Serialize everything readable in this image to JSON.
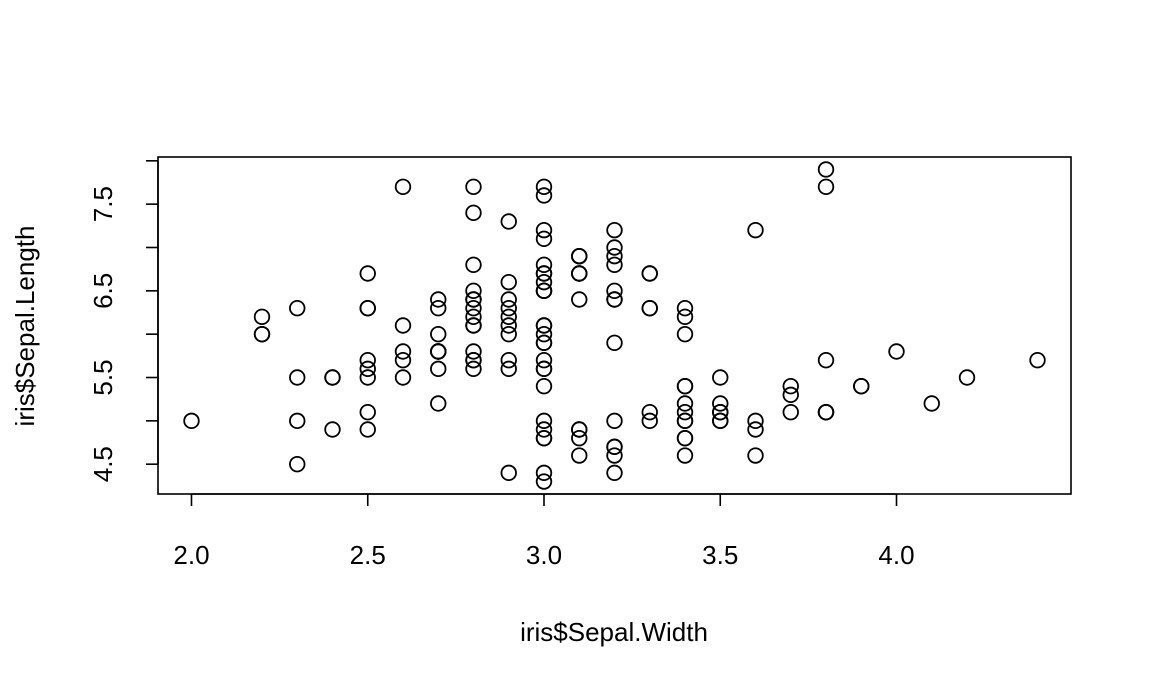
{
  "chart_data": {
    "type": "scatter",
    "xlabel": "iris$Sepal.Width",
    "ylabel": "iris$Sepal.Length",
    "xlim": [
      1.905,
      4.495
    ],
    "ylim": [
      4.156,
      8.044
    ],
    "x_ticks": [
      "2.0",
      "2.5",
      "3.0",
      "3.5",
      "4.0"
    ],
    "y_ticks": [
      "4.5",
      "5.5",
      "6.5",
      "7.5"
    ],
    "x_tick_values": [
      2.0,
      2.5,
      3.0,
      3.5,
      4.0
    ],
    "y_tick_values": [
      4.5,
      5.0,
      5.5,
      6.0,
      6.5,
      7.0,
      7.5,
      8.0
    ],
    "y_labeled_values": [
      4.5,
      5.5,
      6.5,
      7.5
    ],
    "grid": false,
    "marker": "open-circle",
    "points": [
      [
        3.5,
        5.1
      ],
      [
        3.0,
        4.9
      ],
      [
        3.2,
        4.7
      ],
      [
        3.1,
        4.6
      ],
      [
        3.6,
        5.0
      ],
      [
        3.9,
        5.4
      ],
      [
        3.4,
        4.6
      ],
      [
        3.4,
        5.0
      ],
      [
        2.9,
        4.4
      ],
      [
        3.1,
        4.9
      ],
      [
        3.7,
        5.4
      ],
      [
        3.4,
        4.8
      ],
      [
        3.0,
        4.8
      ],
      [
        3.0,
        4.3
      ],
      [
        4.0,
        5.8
      ],
      [
        4.4,
        5.7
      ],
      [
        3.9,
        5.4
      ],
      [
        3.5,
        5.1
      ],
      [
        3.8,
        5.7
      ],
      [
        3.8,
        5.1
      ],
      [
        3.4,
        5.4
      ],
      [
        3.7,
        5.1
      ],
      [
        3.6,
        4.6
      ],
      [
        3.3,
        5.1
      ],
      [
        3.4,
        4.8
      ],
      [
        3.0,
        5.0
      ],
      [
        3.4,
        5.0
      ],
      [
        3.5,
        5.2
      ],
      [
        3.4,
        5.2
      ],
      [
        3.2,
        4.7
      ],
      [
        3.1,
        4.8
      ],
      [
        3.4,
        5.4
      ],
      [
        4.1,
        5.2
      ],
      [
        4.2,
        5.5
      ],
      [
        3.1,
        4.9
      ],
      [
        3.2,
        5.0
      ],
      [
        3.5,
        5.5
      ],
      [
        3.6,
        4.9
      ],
      [
        3.0,
        4.4
      ],
      [
        3.4,
        5.1
      ],
      [
        3.5,
        5.0
      ],
      [
        2.3,
        4.5
      ],
      [
        3.2,
        4.4
      ],
      [
        3.5,
        5.0
      ],
      [
        3.8,
        5.1
      ],
      [
        3.0,
        4.8
      ],
      [
        3.8,
        5.1
      ],
      [
        3.2,
        4.6
      ],
      [
        3.7,
        5.3
      ],
      [
        3.3,
        5.0
      ],
      [
        3.2,
        7.0
      ],
      [
        3.2,
        6.4
      ],
      [
        3.1,
        6.9
      ],
      [
        2.3,
        5.5
      ],
      [
        2.8,
        6.5
      ],
      [
        2.8,
        5.7
      ],
      [
        3.3,
        6.3
      ],
      [
        2.4,
        4.9
      ],
      [
        2.9,
        6.6
      ],
      [
        2.7,
        5.2
      ],
      [
        2.0,
        5.0
      ],
      [
        3.0,
        5.9
      ],
      [
        2.2,
        6.0
      ],
      [
        2.9,
        6.1
      ],
      [
        2.9,
        5.6
      ],
      [
        3.1,
        6.7
      ],
      [
        3.0,
        5.6
      ],
      [
        2.7,
        5.8
      ],
      [
        2.2,
        6.2
      ],
      [
        2.5,
        5.6
      ],
      [
        3.2,
        5.9
      ],
      [
        2.8,
        6.1
      ],
      [
        2.5,
        6.3
      ],
      [
        2.8,
        6.1
      ],
      [
        2.9,
        6.4
      ],
      [
        3.0,
        6.6
      ],
      [
        2.8,
        6.8
      ],
      [
        3.0,
        6.7
      ],
      [
        2.9,
        6.0
      ],
      [
        2.6,
        5.7
      ],
      [
        2.4,
        5.5
      ],
      [
        2.4,
        5.5
      ],
      [
        2.7,
        5.8
      ],
      [
        2.7,
        6.0
      ],
      [
        3.0,
        5.4
      ],
      [
        3.4,
        6.0
      ],
      [
        3.1,
        6.7
      ],
      [
        2.3,
        6.3
      ],
      [
        3.0,
        5.6
      ],
      [
        2.5,
        5.5
      ],
      [
        2.6,
        5.5
      ],
      [
        3.0,
        6.1
      ],
      [
        2.6,
        5.8
      ],
      [
        2.3,
        5.0
      ],
      [
        2.7,
        5.6
      ],
      [
        3.0,
        5.7
      ],
      [
        2.9,
        5.7
      ],
      [
        2.9,
        6.2
      ],
      [
        2.5,
        5.1
      ],
      [
        2.8,
        5.7
      ],
      [
        3.3,
        6.3
      ],
      [
        2.7,
        5.8
      ],
      [
        3.0,
        7.1
      ],
      [
        2.9,
        6.3
      ],
      [
        3.0,
        6.5
      ],
      [
        3.0,
        7.6
      ],
      [
        2.5,
        4.9
      ],
      [
        2.9,
        7.3
      ],
      [
        2.5,
        6.7
      ],
      [
        3.6,
        7.2
      ],
      [
        3.2,
        6.5
      ],
      [
        2.7,
        6.4
      ],
      [
        3.0,
        6.8
      ],
      [
        2.5,
        5.7
      ],
      [
        2.8,
        5.8
      ],
      [
        3.2,
        6.4
      ],
      [
        3.0,
        6.5
      ],
      [
        3.8,
        7.7
      ],
      [
        2.6,
        7.7
      ],
      [
        2.2,
        6.0
      ],
      [
        3.2,
        6.9
      ],
      [
        2.8,
        5.6
      ],
      [
        2.8,
        7.7
      ],
      [
        2.7,
        6.3
      ],
      [
        3.3,
        6.7
      ],
      [
        3.2,
        7.2
      ],
      [
        2.8,
        6.2
      ],
      [
        3.0,
        6.1
      ],
      [
        2.8,
        6.4
      ],
      [
        3.0,
        7.2
      ],
      [
        2.8,
        7.4
      ],
      [
        3.8,
        7.9
      ],
      [
        2.8,
        6.4
      ],
      [
        2.8,
        6.3
      ],
      [
        2.6,
        6.1
      ],
      [
        3.0,
        7.7
      ],
      [
        3.4,
        6.3
      ],
      [
        3.1,
        6.4
      ],
      [
        3.0,
        6.0
      ],
      [
        3.1,
        6.9
      ],
      [
        3.1,
        6.7
      ],
      [
        3.1,
        6.9
      ],
      [
        2.7,
        5.8
      ],
      [
        3.2,
        6.8
      ],
      [
        3.3,
        6.7
      ],
      [
        3.0,
        6.7
      ],
      [
        2.5,
        6.3
      ],
      [
        3.0,
        6.5
      ],
      [
        3.4,
        6.2
      ],
      [
        3.0,
        5.9
      ]
    ]
  }
}
